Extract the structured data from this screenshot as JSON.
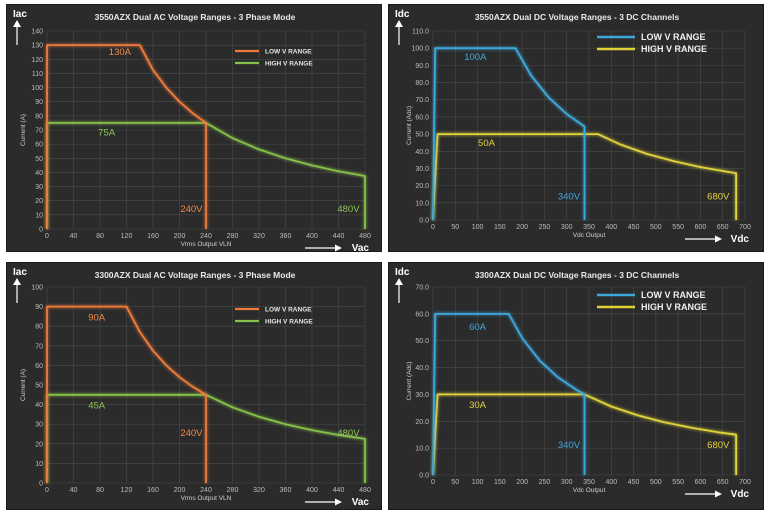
{
  "colors": {
    "ac_low": "#ee7a3b",
    "ac_high": "#86c24a",
    "dc_low": "#3ea8db",
    "dc_high": "#e0d33a",
    "ac_low_label": "#f08a4b",
    "ac_high_label": "#8cc456",
    "dc_low_label": "#43a6dc",
    "dc_high_label": "#e2d13c"
  },
  "chart_data": [
    {
      "type": "line",
      "title": "3550AZX Dual AC Voltage Ranges - 3 Phase Mode",
      "xlabel": "Vrms Output VLN",
      "ylabel": "Current (A)",
      "x_axis_symbol": "Vac",
      "y_axis_symbol": "Iac",
      "xlim": [
        0,
        480
      ],
      "ylim": [
        0,
        140
      ],
      "xticks": [
        0,
        40,
        80,
        120,
        160,
        200,
        240,
        280,
        320,
        360,
        400,
        440,
        480
      ],
      "yticks": [
        0,
        10,
        20,
        30,
        40,
        50,
        60,
        70,
        80,
        90,
        100,
        110,
        120,
        130,
        140
      ],
      "grid": true,
      "legend_position": "top-right",
      "series": [
        {
          "name": "LOW V RANGE",
          "x": [
            0,
            0,
            140,
            160,
            180,
            200,
            220,
            240,
            240
          ],
          "y": [
            0,
            130,
            130,
            112.5,
            100,
            90,
            81.8,
            75,
            0
          ]
        },
        {
          "name": "HIGH V RANGE",
          "x": [
            0,
            0,
            240,
            280,
            320,
            360,
            400,
            440,
            480,
            480
          ],
          "y": [
            0,
            75,
            75,
            64.3,
            56.3,
            50,
            45,
            40.9,
            37.5,
            0
          ]
        }
      ],
      "annotations": [
        {
          "text": "130A",
          "x": 110,
          "y": 123,
          "series": 0
        },
        {
          "text": "75A",
          "x": 90,
          "y": 66,
          "series": 1
        },
        {
          "text": "240V",
          "x": 218,
          "y": 12,
          "series": 0
        },
        {
          "text": "480V",
          "x": 455,
          "y": 12,
          "series": 1
        }
      ]
    },
    {
      "type": "line",
      "title": "3550AZX Dual DC Voltage Ranges - 3 DC Channels",
      "xlabel": "Vdc Output",
      "ylabel": "Current (Adc)",
      "x_axis_symbol": "Vdc",
      "y_axis_symbol": "Idc",
      "xlim": [
        0,
        700
      ],
      "ylim": [
        0,
        110
      ],
      "xticks": [
        0,
        50,
        100,
        150,
        200,
        250,
        300,
        350,
        400,
        450,
        500,
        550,
        600,
        650,
        700
      ],
      "yticks": [
        0.0,
        10.0,
        20.0,
        30.0,
        40.0,
        50.0,
        60.0,
        70.0,
        80.0,
        90.0,
        100.0,
        110.0
      ],
      "grid": true,
      "legend_position": "top-right",
      "series": [
        {
          "name": "LOW V RANGE",
          "x": [
            0,
            5,
            185,
            220,
            260,
            300,
            340,
            340
          ],
          "y": [
            0,
            100,
            100,
            84.1,
            71.2,
            61.7,
            54.4,
            0
          ]
        },
        {
          "name": "HIGH V RANGE",
          "x": [
            0,
            10,
            370,
            420,
            480,
            540,
            600,
            680,
            680
          ],
          "y": [
            0,
            50,
            50,
            44,
            38.5,
            34.3,
            30.8,
            27.2,
            0
          ]
        }
      ],
      "annotations": [
        {
          "text": "100A",
          "x": 95,
          "y": 93,
          "series": 0
        },
        {
          "text": "50A",
          "x": 120,
          "y": 43,
          "series": 1
        },
        {
          "text": "340V",
          "x": 305,
          "y": 12,
          "series": 0
        },
        {
          "text": "680V",
          "x": 640,
          "y": 12,
          "series": 1
        }
      ]
    },
    {
      "type": "line",
      "title": "3300AZX Dual AC Voltage Ranges - 3 Phase Mode",
      "xlabel": "Vrms Output VLN",
      "ylabel": "Current (A)",
      "x_axis_symbol": "Vac",
      "y_axis_symbol": "Iac",
      "xlim": [
        0,
        480
      ],
      "ylim": [
        0,
        100
      ],
      "xticks": [
        0,
        40,
        80,
        120,
        160,
        200,
        240,
        280,
        320,
        360,
        400,
        440,
        480
      ],
      "yticks": [
        0,
        10,
        20,
        30,
        40,
        50,
        60,
        70,
        80,
        90,
        100
      ],
      "grid": true,
      "legend_position": "top-right",
      "series": [
        {
          "name": "LOW V RANGE",
          "x": [
            0,
            0,
            120,
            140,
            160,
            180,
            200,
            220,
            240,
            240
          ],
          "y": [
            0,
            90,
            90,
            77.1,
            67.5,
            60,
            54,
            49.1,
            45,
            0
          ]
        },
        {
          "name": "HIGH V RANGE",
          "x": [
            0,
            0,
            240,
            280,
            320,
            360,
            400,
            440,
            480,
            480
          ],
          "y": [
            0,
            45,
            45,
            38.6,
            33.8,
            30,
            27,
            24.5,
            22.5,
            0
          ]
        }
      ],
      "annotations": [
        {
          "text": "90A",
          "x": 75,
          "y": 83,
          "series": 0
        },
        {
          "text": "45A",
          "x": 75,
          "y": 38,
          "series": 1
        },
        {
          "text": "240V",
          "x": 218,
          "y": 24,
          "series": 0
        },
        {
          "text": "480V",
          "x": 455,
          "y": 24,
          "series": 1
        }
      ]
    },
    {
      "type": "line",
      "title": "3300AZX Dual DC Voltage Ranges - 3 DC Channels",
      "xlabel": "Vdc Output",
      "ylabel": "Current (Adc)",
      "x_axis_symbol": "Vdc",
      "y_axis_symbol": "Idc",
      "xlim": [
        0,
        700
      ],
      "ylim": [
        0,
        70
      ],
      "xticks": [
        0,
        50,
        100,
        150,
        200,
        250,
        300,
        350,
        400,
        450,
        500,
        550,
        600,
        650,
        700
      ],
      "yticks": [
        0.0,
        10.0,
        20.0,
        30.0,
        40.0,
        50.0,
        60.0,
        70.0
      ],
      "grid": true,
      "legend_position": "top-right",
      "series": [
        {
          "name": "LOW V RANGE",
          "x": [
            0,
            5,
            170,
            200,
            240,
            280,
            320,
            340,
            340
          ],
          "y": [
            0,
            60,
            60,
            51,
            42.5,
            36.4,
            31.9,
            30,
            0
          ]
        },
        {
          "name": "HIGH V RANGE",
          "x": [
            0,
            10,
            340,
            400,
            460,
            520,
            580,
            640,
            680,
            680
          ],
          "y": [
            0,
            30,
            30,
            25.5,
            22.2,
            19.6,
            17.6,
            15.9,
            15,
            0
          ]
        }
      ],
      "annotations": [
        {
          "text": "60A",
          "x": 100,
          "y": 54,
          "series": 0
        },
        {
          "text": "30A",
          "x": 100,
          "y": 25,
          "series": 1
        },
        {
          "text": "340V",
          "x": 305,
          "y": 10,
          "series": 0
        },
        {
          "text": "680V",
          "x": 640,
          "y": 10,
          "series": 1
        }
      ]
    }
  ]
}
